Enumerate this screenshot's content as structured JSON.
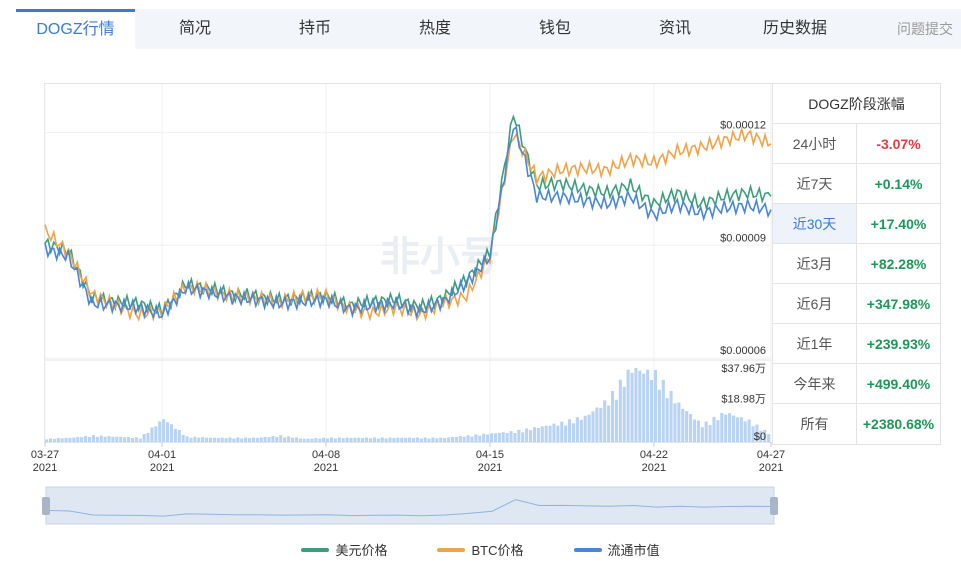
{
  "tabs": [
    {
      "label": "DOGZ行情",
      "active": true
    },
    {
      "label": "简况"
    },
    {
      "label": "持币"
    },
    {
      "label": "热度"
    },
    {
      "label": "钱包"
    },
    {
      "label": "资讯"
    },
    {
      "label": "历史数据"
    }
  ],
  "feedback_label": "问题提交",
  "watermark": "非小号",
  "stats": {
    "title": "DOGZ阶段涨幅",
    "rows": [
      {
        "label": "24小时",
        "value": "-3.07%",
        "dir": "down"
      },
      {
        "label": "近7天",
        "value": "+0.14%",
        "dir": "up"
      },
      {
        "label": "近30天",
        "value": "+17.40%",
        "dir": "up",
        "highlight": true
      },
      {
        "label": "近3月",
        "value": "+82.28%",
        "dir": "up"
      },
      {
        "label": "近6月",
        "value": "+347.98%",
        "dir": "up"
      },
      {
        "label": "近1年",
        "value": "+239.93%",
        "dir": "up"
      },
      {
        "label": "今年来",
        "value": "+499.40%",
        "dir": "up"
      },
      {
        "label": "所有",
        "value": "+2380.68%",
        "dir": "up"
      }
    ]
  },
  "colors": {
    "usd": "#3d9e7a",
    "btc": "#f0a44a",
    "mcap": "#4a86d6",
    "volume": "#b8d3f3"
  },
  "chart_data": {
    "type": "line",
    "x_ticks": [
      {
        "date": "03-27",
        "year": "2021"
      },
      {
        "date": "04-01",
        "year": "2021"
      },
      {
        "date": "04-08",
        "year": "2021"
      },
      {
        "date": "04-15",
        "year": "2021"
      },
      {
        "date": "04-22",
        "year": "2021"
      },
      {
        "date": "04-27",
        "year": "2021"
      }
    ],
    "x_range": [
      "2021-03-27",
      "2021-04-27"
    ],
    "price_ticks": [
      "$0.00012",
      "$0.00009",
      "$0.00006"
    ],
    "price_range": [
      6e-05,
      0.00013
    ],
    "volume_ticks": [
      "$37.96万",
      "$18.98万",
      "$0"
    ],
    "volume_range": [
      0,
      37.96
    ],
    "x_days": [
      0,
      1,
      2,
      3,
      4,
      5,
      6,
      7,
      8,
      9,
      10,
      11,
      12,
      13,
      14,
      15,
      16,
      17,
      18,
      19,
      20,
      21,
      22,
      23,
      24,
      25,
      26,
      27,
      28,
      29,
      30,
      31
    ],
    "series": [
      {
        "name": "美元价格",
        "key": "usd",
        "values": [
          9.05e-05,
          8.85e-05,
          7.6e-05,
          7.5e-05,
          7.45e-05,
          7.25e-05,
          7.95e-05,
          7.85e-05,
          7.7e-05,
          7.65e-05,
          7.55e-05,
          7.6e-05,
          7.65e-05,
          7.4e-05,
          7.5e-05,
          7.55e-05,
          7.35e-05,
          7.6e-05,
          8.1e-05,
          8.8e-05,
          0.000125,
          0.000106,
          0.0001065,
          0.000105,
          0.000104,
          0.000106,
          0.000101,
          0.000104,
          0.000101,
          0.000103,
          0.000104,
          0.000103
        ]
      },
      {
        "name": "BTC价格",
        "key": "btc",
        "values": [
          9.4e-05,
          8.8e-05,
          7.7e-05,
          7.4e-05,
          7.15e-05,
          7.25e-05,
          7.9e-05,
          7.8e-05,
          7.65e-05,
          7.6e-05,
          7.5e-05,
          7.65e-05,
          7.65e-05,
          7.3e-05,
          7.2e-05,
          7.35e-05,
          7.15e-05,
          7.45e-05,
          7.65e-05,
          8.7e-05,
          0.00012,
          0.000108,
          0.00011,
          0.0001105,
          0.00011,
          0.000113,
          0.000112,
          0.000115,
          0.000116,
          0.000118,
          0.0001195,
          0.000117
        ]
      },
      {
        "name": "流通市值",
        "key": "mcap",
        "values": [
          8.9e-05,
          8.7e-05,
          7.45e-05,
          7.4e-05,
          7.35e-05,
          7.15e-05,
          7.85e-05,
          7.75e-05,
          7.6e-05,
          7.55e-05,
          7.45e-05,
          7.5e-05,
          7.55e-05,
          7.3e-05,
          7.4e-05,
          7.45e-05,
          7.25e-05,
          7.5e-05,
          8e-05,
          8.7e-05,
          0.000122,
          0.000103,
          0.000103,
          0.000102,
          0.000101,
          0.000103,
          9.8e-05,
          0.000101,
          9.85e-05,
          0.0001,
          0.0001005,
          9.95e-05
        ]
      }
    ],
    "volume": [
      1.5,
      2,
      3,
      2.5,
      2,
      11,
      2.5,
      2,
      2,
      2,
      3,
      1.5,
      2,
      2,
      2,
      2,
      2,
      2,
      3,
      4,
      5,
      7,
      9,
      12,
      20,
      35,
      32,
      18,
      8,
      14,
      10,
      3
    ]
  }
}
